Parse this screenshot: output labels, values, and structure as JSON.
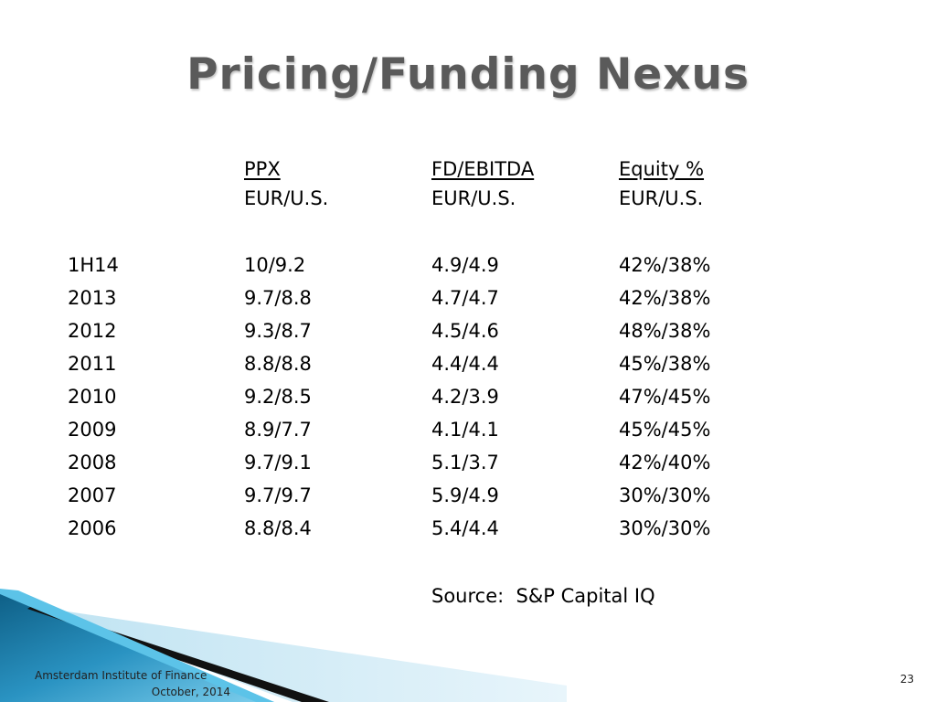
{
  "title": "Pricing/Funding Nexus",
  "headers": {
    "ppx": "PPX",
    "fd": "FD/EBITDA",
    "equity": "Equity %",
    "sub_ppx": "EUR/U.S.",
    "sub_fd": "EUR/U.S.",
    "sub_equity": "EUR/U.S."
  },
  "rows": [
    {
      "label": "1H14",
      "ppx": "10/9.2",
      "fd": "4.9/4.9",
      "equity": "42%/38%"
    },
    {
      "label": "2013",
      "ppx": "9.7/8.8",
      "fd": "4.7/4.7",
      "equity": "42%/38%"
    },
    {
      "label": "2012",
      "ppx": "9.3/8.7",
      "fd": "4.5/4.6",
      "equity": "48%/38%"
    },
    {
      "label": "2011",
      "ppx": "8.8/8.8",
      "fd": "4.4/4.4",
      "equity": "45%/38%"
    },
    {
      "label": "2010",
      "ppx": "9.2/8.5",
      "fd": "4.2/3.9",
      "equity": "47%/45%"
    },
    {
      "label": "2009",
      "ppx": "8.9/7.7",
      "fd": "4.1/4.1",
      "equity": "45%/45%"
    },
    {
      "label": "2008",
      "ppx": "9.7/9.1",
      "fd": "5.1/3.7",
      "equity": "42%/40%"
    },
    {
      "label": "2007",
      "ppx": "9.7/9.7",
      "fd": "5.9/4.9",
      "equity": "30%/30%"
    },
    {
      "label": "2006",
      "ppx": "8.8/8.4",
      "fd": "5.4/4.4",
      "equity": "30%/30%"
    }
  ],
  "source": "Source:  S&P Capital IQ",
  "footer": {
    "org": "Amsterdam Institute of Finance",
    "date": "October, 2014",
    "page": "23"
  },
  "colors": {
    "title": "#5a5a5a",
    "accent_dark": "#0e5f86",
    "accent_light": "#5cc3e8"
  }
}
